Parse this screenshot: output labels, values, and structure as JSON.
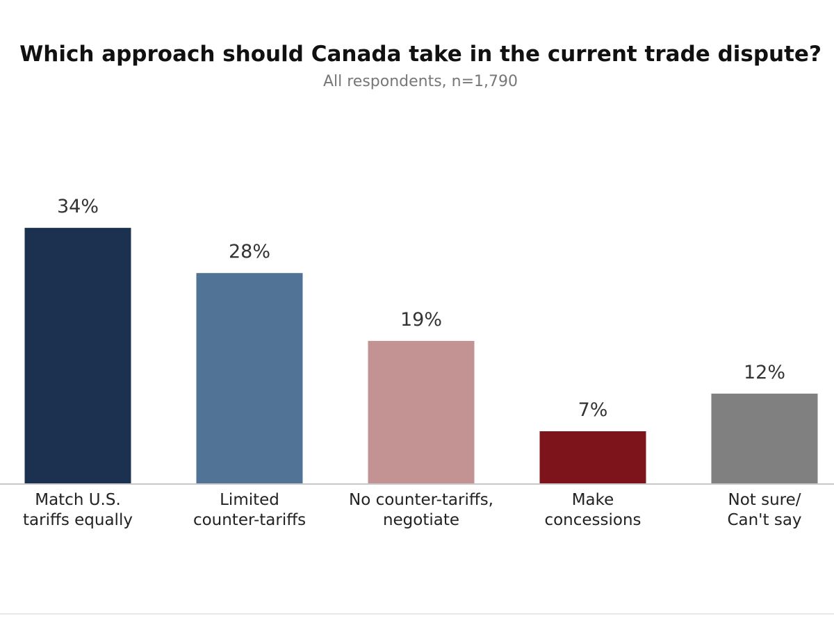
{
  "chart_data": {
    "type": "bar",
    "title": "Which approach should Canada take in the current trade dispute?",
    "subtitle": "All respondents, n=1,790",
    "xlabel": "",
    "ylabel": "",
    "ylim": [
      0,
      50
    ],
    "grid": false,
    "legend": "none",
    "value_suffix": "%",
    "categories": [
      [
        "Match U.S.",
        "tariffs equally"
      ],
      [
        "Limited",
        "counter-tariffs"
      ],
      [
        "No counter-tariffs,",
        "negotiate"
      ],
      [
        "Make",
        "concessions"
      ],
      [
        "Not sure/",
        "Can't say"
      ]
    ],
    "values": [
      34,
      28,
      19,
      7,
      12
    ],
    "data_labels": [
      "34%",
      "28%",
      "19%",
      "7%",
      "12%"
    ],
    "colors": [
      "#1c3150",
      "#517395",
      "#c29392",
      "#7d141b",
      "#808080"
    ]
  }
}
